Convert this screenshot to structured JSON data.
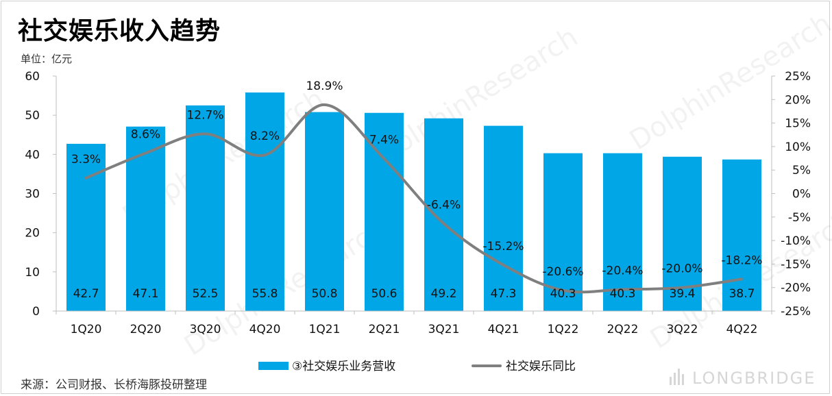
{
  "title": "社交娱乐收入趋势",
  "unit_label": "单位：亿元",
  "source": "来源：公司财报、长桥海豚投研整理",
  "brand": "LONGBRIDGE",
  "watermark": "DolphinResearch",
  "colors": {
    "bar": "#00A6E6",
    "line": "#7f7f7f",
    "axis": "#bfbfbf"
  },
  "chart_data": {
    "type": "bar",
    "categories": [
      "1Q20",
      "2Q20",
      "3Q20",
      "4Q20",
      "1Q21",
      "2Q21",
      "3Q21",
      "4Q21",
      "1Q22",
      "2Q22",
      "3Q22",
      "4Q22"
    ],
    "series": [
      {
        "name": "③社交娱乐业务营收",
        "type": "bar",
        "axis": "left",
        "values": [
          42.7,
          47.1,
          52.5,
          55.8,
          50.8,
          50.6,
          49.2,
          47.3,
          40.3,
          40.3,
          39.4,
          38.7
        ],
        "labels": [
          "42.7",
          "47.1",
          "52.5",
          "55.8",
          "50.8",
          "50.6",
          "49.2",
          "47.3",
          "40.3",
          "40.3",
          "39.4",
          "38.7"
        ]
      },
      {
        "name": "社交娱乐同比",
        "type": "line",
        "axis": "right",
        "values": [
          3.3,
          8.6,
          12.7,
          8.2,
          18.9,
          7.4,
          -6.4,
          -15.2,
          -20.6,
          -20.4,
          -20.0,
          -18.2
        ],
        "labels": [
          "3.3%",
          "8.6%",
          "12.7%",
          "8.2%",
          "18.9%",
          "7.4%",
          "-6.4%",
          "-15.2%",
          "-20.6%",
          "-20.4%",
          "-20.0%",
          "-18.2%"
        ]
      }
    ],
    "y_left": {
      "min": 0,
      "max": 60,
      "ticks": [
        "0",
        "10",
        "20",
        "30",
        "40",
        "50",
        "60"
      ]
    },
    "y_right": {
      "min": -25,
      "max": 25,
      "ticks": [
        "-25%",
        "-20%",
        "-15%",
        "-10%",
        "-5%",
        "0%",
        "5%",
        "10%",
        "15%",
        "20%",
        "25%"
      ]
    },
    "grid": false,
    "legend_position": "bottom"
  }
}
